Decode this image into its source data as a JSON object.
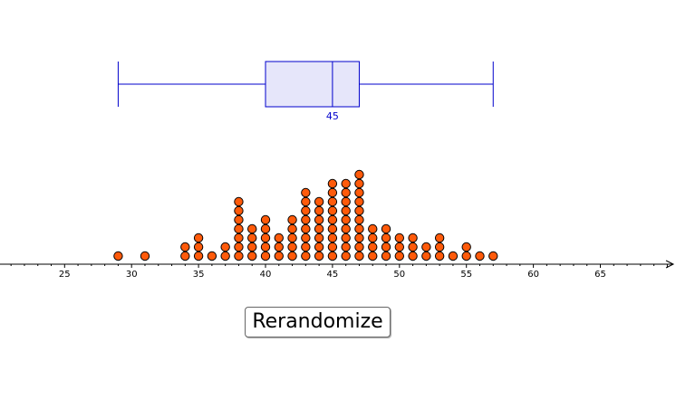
{
  "controls": {
    "rerandomize_label": "Rerandomize"
  },
  "colors": {
    "box_stroke": "#0000cc",
    "box_fill": "#e6e6fa",
    "dot_fill": "#ff5a0a",
    "dot_stroke": "#000000",
    "axis": "#000000"
  },
  "chart_data": [
    {
      "type": "box",
      "min": 29,
      "q1": 40,
      "median": 45,
      "q3": 47,
      "max": 57,
      "median_label": "45"
    },
    {
      "type": "dot",
      "xlim": [
        20,
        70
      ],
      "x_ticks": [
        "25",
        "30",
        "35",
        "40",
        "45",
        "50",
        "55",
        "60",
        "65"
      ],
      "counts": {
        "29": 1,
        "31": 1,
        "34": 2,
        "35": 3,
        "36": 1,
        "37": 2,
        "38": 7,
        "39": 4,
        "40": 5,
        "41": 3,
        "42": 5,
        "43": 8,
        "44": 7,
        "45": 9,
        "46": 9,
        "47": 10,
        "48": 4,
        "49": 4,
        "50": 3,
        "51": 3,
        "52": 2,
        "53": 3,
        "54": 1,
        "55": 2,
        "56": 1,
        "57": 1
      }
    }
  ]
}
